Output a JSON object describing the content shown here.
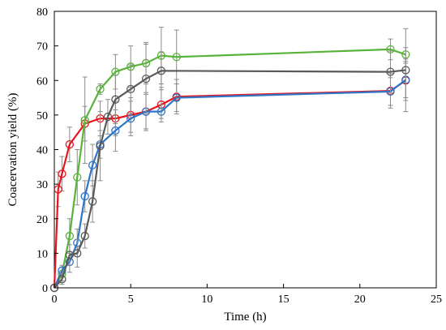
{
  "chart_data": {
    "type": "line",
    "xlabel": "Time (h)",
    "ylabel": "Coacervation yield (%)",
    "xlim": [
      0,
      25
    ],
    "ylim": [
      0,
      80
    ],
    "xticks": [
      "0",
      "5",
      "10",
      "15",
      "20",
      "25"
    ],
    "yticks": [
      "0",
      "10",
      "20",
      "30",
      "40",
      "50",
      "60",
      "70",
      "80"
    ],
    "xtick_values": [
      0,
      5,
      10,
      15,
      20,
      25
    ],
    "ytick_values": [
      0,
      10,
      20,
      30,
      40,
      50,
      60,
      70,
      80
    ],
    "grid": false,
    "marker": "open-circle",
    "series": [
      {
        "color": "#e8141c",
        "x": [
          0,
          0.25,
          0.5,
          1,
          2,
          3,
          4,
          5,
          6,
          7,
          8,
          22,
          23
        ],
        "y": [
          0,
          28.5,
          33,
          41.5,
          47.5,
          49,
          49,
          50,
          51,
          53,
          55.3,
          57,
          60
        ],
        "err": [
          0,
          5,
          5,
          5,
          5,
          5,
          5,
          5,
          5,
          5,
          5,
          5,
          5
        ]
      },
      {
        "color": "#58b33a",
        "x": [
          0,
          0.5,
          1,
          1.5,
          2,
          3,
          4,
          5,
          6,
          7,
          8,
          22,
          23
        ],
        "y": [
          0,
          4,
          15,
          32,
          48.5,
          57.5,
          62.5,
          64,
          65,
          67.2,
          66.8,
          69,
          67.5
        ],
        "err": [
          0,
          2,
          5,
          8,
          12.5,
          1.5,
          5,
          6,
          6,
          8.2,
          7.8,
          3,
          2
        ]
      },
      {
        "color": "#2f76c7",
        "x": [
          0,
          0.5,
          1,
          1.5,
          2,
          2.5,
          3,
          4,
          5,
          6,
          7,
          8,
          22,
          23
        ],
        "y": [
          0,
          5,
          7.5,
          13,
          26.5,
          35.5,
          41.5,
          45.5,
          49,
          51,
          51,
          55,
          56.8,
          60.2
        ],
        "err": [
          0,
          1.5,
          3,
          4,
          4.5,
          6,
          4,
          6,
          5,
          5.5,
          2,
          4,
          4,
          6
        ]
      },
      {
        "color": "#5a5a5a",
        "x": [
          0,
          0.5,
          1,
          1.5,
          2,
          2.5,
          3,
          3.5,
          4,
          5,
          6,
          7,
          22,
          23
        ],
        "y": [
          0,
          2.5,
          9.5,
          10,
          15,
          25,
          41,
          49.5,
          54.5,
          57.5,
          60.5,
          62.8,
          62.5,
          63
        ],
        "err": [
          0,
          1.5,
          3,
          4,
          3.5,
          6,
          10,
          5,
          7,
          7,
          10,
          5.5,
          6,
          12
        ]
      }
    ]
  }
}
